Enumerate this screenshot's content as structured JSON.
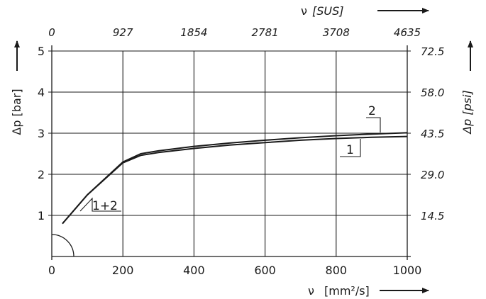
{
  "chart_data": {
    "type": "line",
    "title": "",
    "xlabel": "ν",
    "xlabel_unit": "[mm²/s]",
    "ylabel": "Δp [bar]",
    "x2label": "ν",
    "x2label_unit": "[SUS]",
    "y2label": "Δp [psi]",
    "xlim": [
      0,
      1000
    ],
    "ylim": [
      0,
      5
    ],
    "grid": true,
    "x_ticks": [
      "0",
      "200",
      "400",
      "600",
      "800",
      "1000"
    ],
    "y_ticks": [
      "1",
      "2",
      "3",
      "4",
      "5"
    ],
    "x2_ticks": [
      "0",
      "927",
      "1854",
      "2781",
      "3708",
      "4635"
    ],
    "y2_ticks": [
      "14.5",
      "29.0",
      "43.5",
      "58.0",
      "72.5"
    ],
    "shared_label": "1+2",
    "series": [
      {
        "name": "1",
        "x": [
          30,
          100,
          200,
          250,
          300,
          400,
          500,
          600,
          700,
          800,
          900,
          1000
        ],
        "y": [
          0.8,
          1.5,
          2.28,
          2.46,
          2.53,
          2.63,
          2.71,
          2.77,
          2.83,
          2.87,
          2.9,
          2.92
        ]
      },
      {
        "name": "2",
        "x": [
          30,
          100,
          200,
          250,
          300,
          400,
          500,
          600,
          700,
          800,
          900,
          1000
        ],
        "y": [
          0.8,
          1.5,
          2.3,
          2.5,
          2.57,
          2.68,
          2.76,
          2.83,
          2.89,
          2.94,
          2.98,
          3.01
        ]
      }
    ]
  }
}
